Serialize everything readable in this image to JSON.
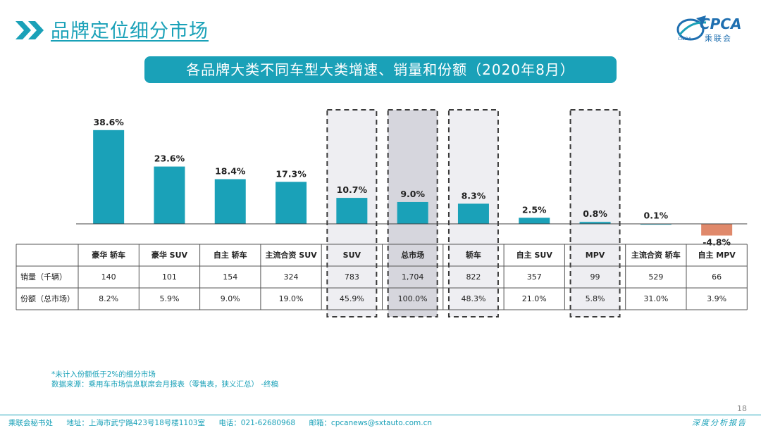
{
  "header": {
    "page_title": "品牌定位细分市场",
    "logo_text": "CPCA",
    "logo_sub": "乘联会",
    "logo_small": "CAIDA"
  },
  "banner_title": "各品牌大类不同车型大类增速、销量和份额（2020年8月）",
  "chart_data": {
    "type": "bar",
    "title": "各品牌大类不同车型大类增速、销量和份额（2020年8月）",
    "categories": [
      "豪华 轿车",
      "豪华 SUV",
      "自主 轿车",
      "主流合资 SUV",
      "SUV",
      "总市场",
      "轿车",
      "自主 SUV",
      "MPV",
      "主流合资 轿车",
      "自主 MPV"
    ],
    "values": [
      38.6,
      23.6,
      18.4,
      17.3,
      10.7,
      9.0,
      8.3,
      2.5,
      0.8,
      0.1,
      -4.8
    ],
    "value_labels": [
      "38.6%",
      "23.6%",
      "18.4%",
      "17.3%",
      "10.7%",
      "9.0%",
      "8.3%",
      "2.5%",
      "0.8%",
      "0.1%",
      "-4.8%"
    ],
    "unit": "%",
    "highlighted": [
      "SUV",
      "总市场",
      "轿车",
      "MPV"
    ],
    "colors": {
      "positive": "#1aa1b8",
      "negative": "#e0896b",
      "highlight_fill": "#eeeef2",
      "market_fill": "#d6d6dd"
    },
    "table": {
      "rows": [
        {
          "label": "销量（千辆）",
          "values": [
            "140",
            "101",
            "154",
            "324",
            "783",
            "1,704",
            "822",
            "357",
            "99",
            "529",
            "66"
          ]
        },
        {
          "label": "份额（总市场）",
          "values": [
            "8.2%",
            "5.9%",
            "9.0%",
            "19.0%",
            "45.9%",
            "100.0%",
            "48.3%",
            "21.0%",
            "5.8%",
            "31.0%",
            "3.9%"
          ]
        }
      ]
    }
  },
  "notes": {
    "line1": "*未计入份额低于2%的细分市场",
    "line2": "数据来源：乘用车市场信息联席会月报表（零售表，狭义汇总）   -终稿"
  },
  "footer": {
    "org": "乘联会秘书处",
    "address": "地址：上海市武宁路423号18号楼1103室",
    "phone": "电话：021-62680968",
    "email": "邮箱：cpcanews@sxtauto.com.cn",
    "tagline": "深度分析报告",
    "page_number": "18"
  }
}
